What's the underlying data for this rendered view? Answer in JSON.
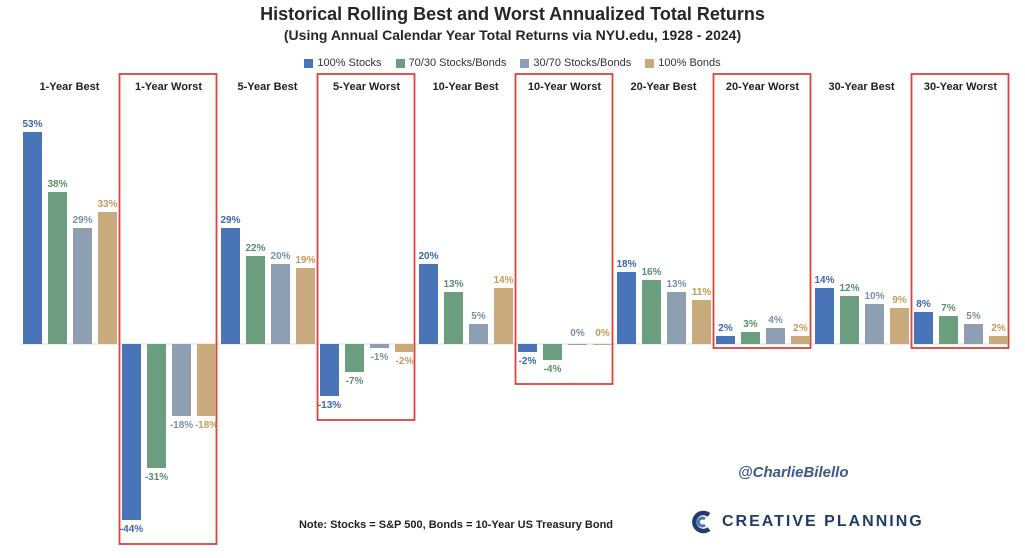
{
  "chart_data": {
    "type": "bar",
    "title": "Historical Rolling Best and Worst Annualized Total Returns",
    "subtitle": "(Using Annual Calendar Year Total Returns via NYU.edu, 1928 - 2024)",
    "categories": [
      "1-Year Best",
      "1-Year Worst",
      "5-Year Best",
      "5-Year Worst",
      "10-Year Best",
      "10-Year Worst",
      "20-Year Best",
      "20-Year Worst",
      "30-Year Best",
      "30-Year Worst"
    ],
    "highlighted": [
      false,
      true,
      false,
      true,
      false,
      true,
      false,
      true,
      false,
      true
    ],
    "series": [
      {
        "name": "100% Stocks",
        "color": "#4a74b8",
        "label_color": "#3d67ad",
        "values": [
          53,
          -44,
          29,
          -13,
          20,
          -2,
          18,
          2,
          14,
          8
        ]
      },
      {
        "name": "70/30 Stocks/Bonds",
        "color": "#6a9e7e",
        "label_color": "#5a8f6d",
        "values": [
          38,
          -31,
          22,
          -7,
          13,
          -4,
          16,
          3,
          12,
          7
        ]
      },
      {
        "name": "30/70 Stocks/Bonds",
        "color": "#8d9fb0",
        "label_color": "#7b8fa3",
        "values": [
          29,
          -18,
          20,
          -1,
          5,
          0,
          13,
          4,
          10,
          5
        ]
      },
      {
        "name": "100% Bonds",
        "color": "#c9aa7c",
        "label_color": "#c59a5a",
        "values": [
          33,
          -18,
          19,
          -2,
          14,
          0,
          11,
          2,
          9,
          2
        ]
      }
    ],
    "value_suffix": "%",
    "ylim": [
      -50,
      55
    ],
    "highlight_color": "#e0413a"
  },
  "annotations": {
    "handle": "@CharlieBilello",
    "note": "Note: Stocks = S&P 500, Bonds = 10-Year US Treasury Bond",
    "brand": "CREATIVE PLANNING"
  }
}
